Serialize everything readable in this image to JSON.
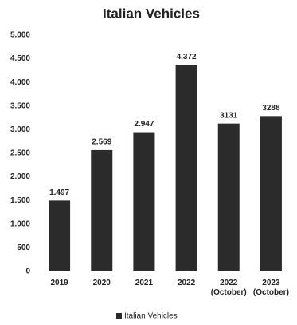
{
  "chart_data": {
    "type": "bar",
    "title": "Italian Vehicles",
    "categories": [
      "2019",
      "2020",
      "2021",
      "2022",
      "2022\n(October)",
      "2023\n(October)"
    ],
    "series": [
      {
        "name": "Italian Vehicles",
        "color": "#2b2b2b",
        "values": [
          1497,
          2569,
          2947,
          4372,
          3131,
          3288
        ],
        "value_labels": [
          "1.497",
          "2.569",
          "2.947",
          "4.372",
          "3131",
          "3288"
        ]
      }
    ],
    "ylim": [
      0,
      5000
    ],
    "yticks": [
      0,
      500,
      {
        "value": 1000,
        "label": "1.000"
      },
      {
        "value": 1500,
        "label": "1.500"
      },
      {
        "value": 2000,
        "label": "2.000"
      },
      {
        "value": 2500,
        "label": "2.500"
      },
      {
        "value": 3000,
        "label": "3.000"
      },
      {
        "value": 3500,
        "label": "3.500"
      },
      {
        "value": 4000,
        "label": "4.000"
      },
      {
        "value": 4500,
        "label": "4.500"
      },
      {
        "value": 5000,
        "label": "5.000"
      }
    ],
    "grid": false,
    "legend": "bottom"
  }
}
